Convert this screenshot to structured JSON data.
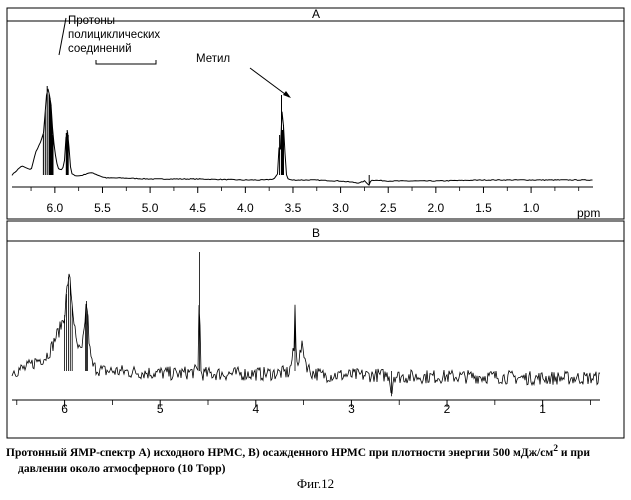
{
  "chart_data": [
    {
      "type": "line",
      "title": "A",
      "xlabel": "ppm",
      "xlim": [
        6.45,
        0.35
      ],
      "x_ticks": [
        6.0,
        5.5,
        5.0,
        4.5,
        4.0,
        3.5,
        3.0,
        2.5,
        2.0,
        1.5,
        1.0
      ],
      "tick_labels": [
        "6.0",
        "5.5",
        "5.0",
        "4.5",
        "4.0",
        "3.5",
        "3.0",
        "2.5",
        "2.0",
        "1.5",
        "1.0"
      ],
      "ylim": [
        0,
        1
      ],
      "annotations": [
        {
          "lines": [
            "Протоны",
            "полициклических",
            "соединений"
          ],
          "bracket_from": 5.45,
          "bracket_to": 4.45
        },
        {
          "lines": [
            "Метил"
          ],
          "x": 3.62,
          "y": 0.62
        }
      ],
      "series": [
        {
          "x": [
            6.45,
            6.35,
            6.25,
            6.2,
            6.15,
            6.12,
            6.1,
            6.08,
            6.06,
            6.05,
            6.04,
            6.03,
            6.02,
            6.0,
            5.98,
            5.96,
            5.94,
            5.92,
            5.9,
            5.89,
            5.88,
            5.87,
            5.86,
            5.85,
            5.84,
            5.83,
            5.82,
            5.8,
            5.76,
            5.7,
            5.65,
            5.6,
            5.55,
            5.5,
            5.45,
            5.3,
            5.0,
            4.5,
            4.0,
            3.8,
            3.7,
            3.66,
            3.64,
            3.63,
            3.62,
            3.61,
            3.6,
            3.59,
            3.58,
            3.57,
            3.56,
            3.55,
            3.52,
            3.45,
            3.3,
            3.0,
            2.9,
            2.8,
            2.75,
            2.7,
            2.68,
            2.5,
            2.0,
            1.5,
            1.0,
            0.5,
            0.35
          ],
          "y": [
            0.05,
            0.14,
            0.1,
            0.28,
            0.38,
            0.46,
            0.7,
            0.94,
            0.86,
            0.82,
            0.75,
            0.6,
            0.45,
            0.28,
            0.17,
            0.11,
            0.1,
            0.11,
            0.18,
            0.33,
            0.47,
            0.5,
            0.45,
            0.3,
            0.16,
            0.09,
            0.06,
            0.05,
            0.04,
            0.05,
            0.07,
            0.07,
            0.05,
            0.03,
            0.02,
            0.02,
            0.01,
            0.01,
            0.0,
            0.0,
            0.01,
            0.06,
            0.45,
            0.3,
            0.85,
            0.5,
            0.55,
            0.38,
            0.2,
            0.06,
            0.02,
            0.01,
            0.0,
            0.0,
            0.0,
            -0.01,
            -0.02,
            -0.03,
            -0.01,
            -0.05,
            0.0,
            -0.01,
            -0.01,
            0.0,
            0.0,
            0.0,
            0.0
          ]
        }
      ]
    },
    {
      "type": "line",
      "title": "B",
      "xlabel": "",
      "xlim": [
        6.55,
        0.4
      ],
      "x_ticks": [
        6,
        5,
        4,
        3,
        2,
        1
      ],
      "tick_labels": [
        "6",
        "5",
        "4",
        "3",
        "2",
        "1"
      ],
      "ylim": [
        0,
        1
      ],
      "series": [
        {
          "x": [
            6.55,
            6.4,
            6.3,
            6.2,
            6.15,
            6.12,
            6.1,
            6.05,
            6.0,
            5.98,
            5.96,
            5.94,
            5.92,
            5.9,
            5.88,
            5.85,
            5.82,
            5.8,
            5.78,
            5.77,
            5.76,
            5.75,
            5.74,
            5.72,
            5.7,
            5.6,
            5.5,
            5.2,
            4.8,
            4.6,
            4.59,
            4.58,
            4.56,
            4.5,
            4.2,
            3.9,
            3.65,
            3.6,
            3.59,
            3.58,
            3.56,
            3.54,
            3.52,
            3.5,
            3.48,
            3.46,
            3.42,
            3.3,
            3.0,
            2.8,
            2.6,
            2.58,
            2.56,
            2.5,
            2.2,
            2.0,
            1.8,
            1.5,
            1.2,
            1.0,
            0.8,
            0.6,
            0.4
          ],
          "y": [
            0.05,
            0.07,
            0.12,
            0.15,
            0.2,
            0.24,
            0.28,
            0.35,
            0.45,
            0.6,
            0.72,
            0.68,
            0.52,
            0.4,
            0.25,
            0.2,
            0.18,
            0.3,
            0.48,
            0.55,
            0.46,
            0.35,
            0.22,
            0.12,
            0.08,
            0.05,
            0.05,
            0.04,
            0.03,
            0.05,
            0.9,
            0.05,
            0.03,
            0.03,
            0.03,
            0.03,
            0.04,
            0.2,
            0.52,
            0.2,
            0.12,
            0.16,
            0.22,
            0.2,
            0.12,
            0.08,
            0.04,
            0.02,
            0.02,
            0.02,
            0.02,
            -0.13,
            0.02,
            0.01,
            0.01,
            0.01,
            0.01,
            0.01,
            0.0,
            0.0,
            0.0,
            0.0,
            0.0
          ],
          "noise": 0.05
        }
      ]
    }
  ],
  "caption": {
    "line1_pre": "Протонный ЯМР-спектр А) исходного НРМС, В) осажденного НРМС при плотности энергии 500 мДж/см",
    "line1_sup": "2",
    "line1_post": " и при",
    "line2": "давлении около атмосферного (10 Торр)"
  },
  "figure_label": "Фиг.12"
}
